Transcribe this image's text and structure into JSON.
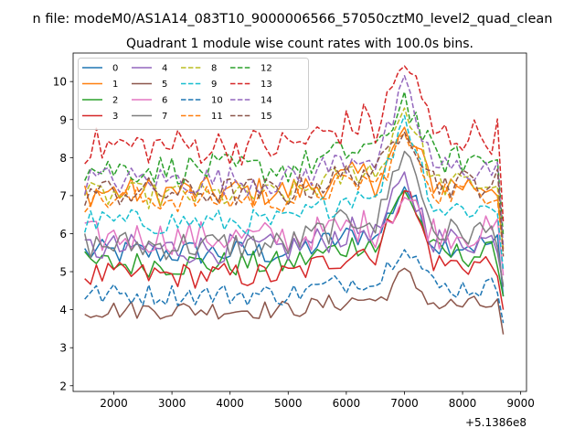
{
  "figure": {
    "suptitle": "n file: modeM0/AS1A14_083T10_9000006566_57050cztM0_level2_quad_clean",
    "title": "Quadrant 1 module wise count rates with 100.0s bins.",
    "x_offset_label": "+5.1386e8"
  },
  "chart_data": {
    "type": "line",
    "title": "Quadrant 1 module wise count rates with 100.0s bins.",
    "xlim": [
      1300,
      9100
    ],
    "ylim": [
      1.85,
      10.75
    ],
    "x_ticks": [
      2000,
      3000,
      4000,
      5000,
      6000,
      7000,
      8000,
      9000
    ],
    "y_ticks": [
      2,
      3,
      4,
      5,
      6,
      7,
      8,
      9,
      10
    ],
    "grid": false,
    "legend_position": "top-left",
    "legend_columns": 4,
    "x_start": 1500,
    "x_step": 100,
    "series": [
      {
        "name": "0",
        "color": "#1f77b4",
        "dash": "solid",
        "level": 5.5,
        "amp": 0.35,
        "bump": 1.5,
        "drop": 2.7
      },
      {
        "name": "1",
        "color": "#ff7f0e",
        "dash": "solid",
        "level": 7.1,
        "amp": 0.4,
        "bump": 1.3,
        "drop": 3.6
      },
      {
        "name": "2",
        "color": "#2ca02c",
        "dash": "solid",
        "level": 5.2,
        "amp": 0.35,
        "bump": 1.7,
        "drop": 3.0
      },
      {
        "name": "3",
        "color": "#d62728",
        "dash": "solid",
        "level": 4.9,
        "amp": 0.35,
        "bump": 2.0,
        "drop": 2.6
      },
      {
        "name": "4",
        "color": "#9467bd",
        "dash": "solid",
        "level": 5.6,
        "amp": 0.4,
        "bump": 1.5,
        "drop": 3.2
      },
      {
        "name": "5",
        "color": "#8c564b",
        "dash": "solid",
        "level": 4.0,
        "amp": 0.25,
        "bump": 0.8,
        "drop": 2.2
      },
      {
        "name": "6",
        "color": "#e377c2",
        "dash": "solid",
        "level": 5.9,
        "amp": 0.45,
        "bump": 0.9,
        "drop": 3.4
      },
      {
        "name": "7",
        "color": "#7f7f7f",
        "dash": "solid",
        "level": 5.7,
        "amp": 0.4,
        "bump": 2.2,
        "drop": 3.0
      },
      {
        "name": "8",
        "color": "#bcbd22",
        "dash": "dashed",
        "level": 7.0,
        "amp": 0.35,
        "bump": 2.0,
        "drop": 3.5
      },
      {
        "name": "9",
        "color": "#17becf",
        "dash": "dashed",
        "level": 6.3,
        "amp": 0.35,
        "bump": 2.4,
        "drop": 3.3
      },
      {
        "name": "10",
        "color": "#1f77b4",
        "dash": "dashed",
        "level": 4.4,
        "amp": 0.3,
        "bump": 1.2,
        "drop": 2.4
      },
      {
        "name": "11",
        "color": "#ff7f0e",
        "dash": "dashed",
        "level": 6.9,
        "amp": 0.35,
        "bump": 1.4,
        "drop": 3.6
      },
      {
        "name": "12",
        "color": "#2ca02c",
        "dash": "dashed",
        "level": 7.7,
        "amp": 0.4,
        "bump": 1.6,
        "drop": 3.7
      },
      {
        "name": "13",
        "color": "#d62728",
        "dash": "dashed",
        "level": 8.3,
        "amp": 0.5,
        "bump": 1.9,
        "drop": 3.8
      },
      {
        "name": "14",
        "color": "#9467bd",
        "dash": "dashed",
        "level": 7.4,
        "amp": 0.4,
        "bump": 2.0,
        "drop": 3.4
      },
      {
        "name": "15",
        "color": "#8c564b",
        "dash": "dashed",
        "level": 7.1,
        "amp": 0.4,
        "bump": 1.6,
        "drop": 3.2
      }
    ]
  }
}
